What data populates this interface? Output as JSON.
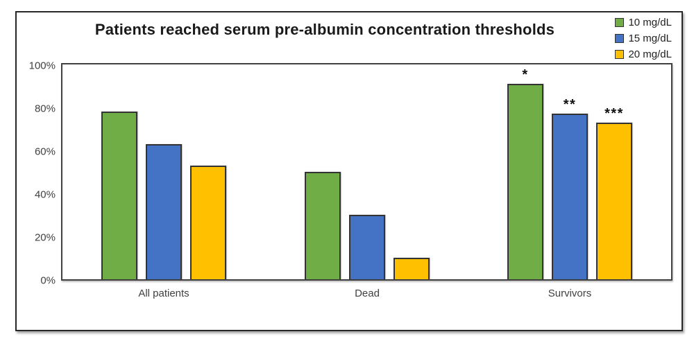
{
  "chart_data": {
    "type": "bar",
    "title": "Patients reached serum pre-albumin concentration thresholds",
    "categories": [
      "All patients",
      "Dead",
      "Survivors"
    ],
    "series": [
      {
        "name": "10 mg/dL",
        "color": "#70AD47",
        "values": [
          78,
          50,
          91
        ]
      },
      {
        "name": "15 mg/dL",
        "color": "#4472C4",
        "values": [
          63,
          30,
          77
        ]
      },
      {
        "name": "20 mg/dL",
        "color": "#FFC000",
        "values": [
          53,
          10,
          73
        ]
      }
    ],
    "annotations": [
      {
        "category": "Survivors",
        "series": "10 mg/dL",
        "text": "*"
      },
      {
        "category": "Survivors",
        "series": "15 mg/dL",
        "text": "**"
      },
      {
        "category": "Survivors",
        "series": "20 mg/dL",
        "text": "***"
      }
    ],
    "y_axis": {
      "ticks": [
        "100%",
        "80%",
        "60%",
        "40%",
        "20%",
        "0%"
      ],
      "min": 0,
      "max": 100,
      "step": 20,
      "unit": "%"
    },
    "legend_position": "top-right",
    "grid": false,
    "bar_outline_color": "#333333",
    "plot_border_color": "#404040"
  }
}
